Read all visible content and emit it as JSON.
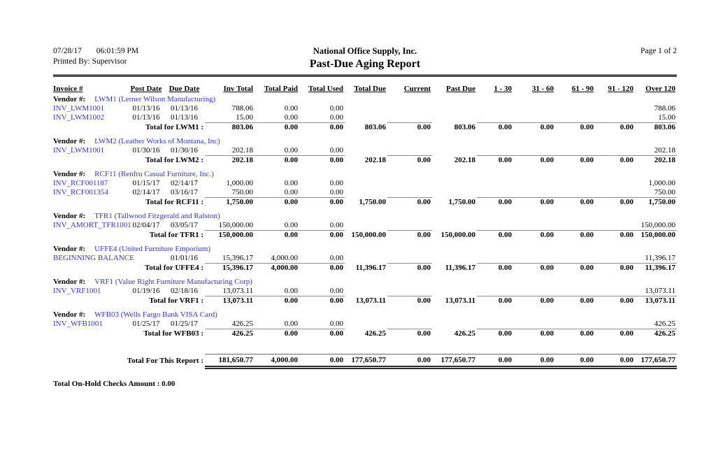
{
  "page": {
    "date": "07/28/17",
    "time": "06:01:59 PM",
    "printed_by": "Printed By: Supervisor",
    "company": "National Office Supply, Inc.",
    "title": "Past-Due Aging Report",
    "page_label": "Page 1 of 2",
    "footer": "Total On-Hold Checks Amount : 0.00"
  },
  "table": {
    "columns": [
      "Invoice #",
      "Post Date",
      "Due Date",
      "Inv Total",
      "Total Paid",
      "Total Used",
      "Total Due",
      "Current",
      "Past Due",
      "1 - 30",
      "31 - 60",
      "61 - 90",
      "91 - 120",
      "Over 120"
    ],
    "vendor_label": "Vendor #:",
    "vendors": [
      {
        "code_name": "LWM1 (Lerner Wilson Manufacturing)",
        "invoices": [
          {
            "id": "INV_LWM1001",
            "post": "01/13/16",
            "due": "01/13/16",
            "inv_total": "788.06",
            "paid": "0.00",
            "used": "0.00",
            "over120": "788.06"
          },
          {
            "id": "INV_LWM1002",
            "post": "01/13/16",
            "due": "01/13/16",
            "inv_total": "15.00",
            "paid": "0.00",
            "used": "0.00",
            "over120": "15.00"
          }
        ],
        "total_label": "Total for LWM1 :",
        "total": {
          "inv_total": "803.06",
          "paid": "0.00",
          "used": "0.00",
          "total_due": "803.06",
          "current": "0.00",
          "past_due": "803.06",
          "a1_30": "0.00",
          "a31_60": "0.00",
          "a61_90": "0.00",
          "a91_120": "0.00",
          "over120": "803.06"
        }
      },
      {
        "code_name": "LWM2 (Leather Works of Montana, Inc)",
        "invoices": [
          {
            "id": "INV_LWM1001",
            "post": "01/30/16",
            "due": "01/30/16",
            "inv_total": "202.18",
            "paid": "0.00",
            "used": "0.00",
            "over120": "202.18"
          }
        ],
        "total_label": "Total for LWM2 :",
        "total": {
          "inv_total": "202.18",
          "paid": "0.00",
          "used": "0.00",
          "total_due": "202.18",
          "current": "0.00",
          "past_due": "202.18",
          "a1_30": "0.00",
          "a31_60": "0.00",
          "a61_90": "0.00",
          "a91_120": "0.00",
          "over120": "202.18"
        }
      },
      {
        "code_name": "RCF11 (Renfru Casual Furniture, Inc.)",
        "invoices": [
          {
            "id": "INV_RCF001187",
            "post": "01/15/17",
            "due": "02/14/17",
            "inv_total": "1,000.00",
            "paid": "0.00",
            "used": "0.00",
            "over120": "1,000.00"
          },
          {
            "id": "INV_RCF001354",
            "post": "02/14/17",
            "due": "03/16/17",
            "inv_total": "750.00",
            "paid": "0.00",
            "used": "0.00",
            "over120": "750.00"
          }
        ],
        "total_label": "Total for RCF11 :",
        "total": {
          "inv_total": "1,750.00",
          "paid": "0.00",
          "used": "0.00",
          "total_due": "1,750.00",
          "current": "0.00",
          "past_due": "1,750.00",
          "a1_30": "0.00",
          "a31_60": "0.00",
          "a61_90": "0.00",
          "a91_120": "0.00",
          "over120": "1,750.00"
        }
      },
      {
        "code_name": "TFR1 (Tallwood Fitzgerald and Ralston)",
        "invoices": [
          {
            "id": "INV_AMORT_TFR1001",
            "post": "02/04/17",
            "due": "03/05/17",
            "inv_total": "150,000.00",
            "paid": "0.00",
            "used": "0.00",
            "over120": "150,000.00"
          }
        ],
        "total_label": "Total for TFR1 :",
        "total": {
          "inv_total": "150,000.00",
          "paid": "0.00",
          "used": "0.00",
          "total_due": "150,000.00",
          "current": "0.00",
          "past_due": "150,000.00",
          "a1_30": "0.00",
          "a31_60": "0.00",
          "a61_90": "0.00",
          "a91_120": "0.00",
          "over120": "150,000.00"
        }
      },
      {
        "code_name": "UFFE4 (United Furniture Emporium)",
        "invoices": [
          {
            "id": "BEGINNING BALANCE",
            "post": "",
            "due": "01/01/16",
            "inv_total": "15,396.17",
            "paid": "4,000.00",
            "used": "0.00",
            "over120": "11,396.17"
          }
        ],
        "total_label": "Total for UFFE4 :",
        "total": {
          "inv_total": "15,396.17",
          "paid": "4,000.00",
          "used": "0.00",
          "total_due": "11,396.17",
          "current": "0.00",
          "past_due": "11,396.17",
          "a1_30": "0.00",
          "a31_60": "0.00",
          "a61_90": "0.00",
          "a91_120": "0.00",
          "over120": "11,396.17"
        }
      },
      {
        "code_name": "VRF1 (Value Right Furniture Manufacturing Corp)",
        "invoices": [
          {
            "id": "INV_VRF1001",
            "post": "01/19/16",
            "due": "02/18/16",
            "inv_total": "13,073.11",
            "paid": "0.00",
            "used": "0.00",
            "over120": "13,073.11"
          }
        ],
        "total_label": "Total for VRF1 :",
        "total": {
          "inv_total": "13,073.11",
          "paid": "0.00",
          "used": "0.00",
          "total_due": "13,073.11",
          "current": "0.00",
          "past_due": "13,073.11",
          "a1_30": "0.00",
          "a31_60": "0.00",
          "a61_90": "0.00",
          "a91_120": "0.00",
          "over120": "13,073.11"
        }
      },
      {
        "code_name": "WFB03 (Wells Fargo Bank VISA Card)",
        "invoices": [
          {
            "id": "INV_WFB1001",
            "post": "01/25/17",
            "due": "01/25/17",
            "inv_total": "426.25",
            "paid": "0.00",
            "used": "0.00",
            "over120": "426.25"
          }
        ],
        "total_label": "Total for WFB03 :",
        "total": {
          "inv_total": "426.25",
          "paid": "0.00",
          "used": "0.00",
          "total_due": "426.25",
          "current": "0.00",
          "past_due": "426.25",
          "a1_30": "0.00",
          "a31_60": "0.00",
          "a61_90": "0.00",
          "a91_120": "0.00",
          "over120": "426.25"
        }
      }
    ],
    "report_total_label": "Total For This Report :",
    "report_total": {
      "inv_total": "181,650.77",
      "paid": "4,000.00",
      "used": "0.00",
      "total_due": "177,650.77",
      "current": "0.00",
      "past_due": "177,650.77",
      "a1_30": "0.00",
      "a31_60": "0.00",
      "a61_90": "0.00",
      "a91_120": "0.00",
      "over120": "177,650.77"
    }
  },
  "colors": {
    "link_blue": "#3333cc",
    "rule_gray": "#4a4a4a"
  }
}
